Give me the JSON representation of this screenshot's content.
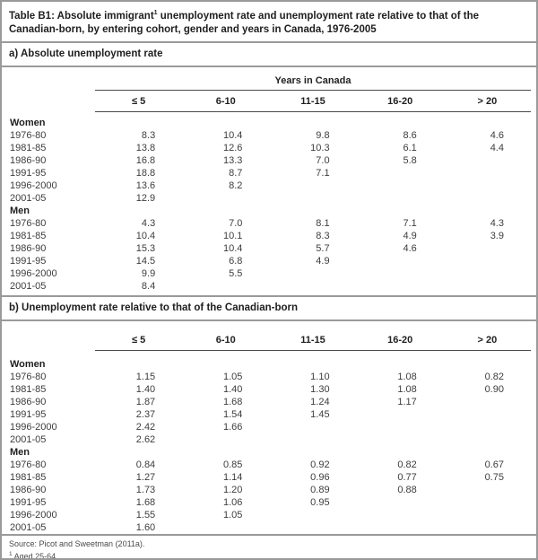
{
  "title": {
    "pre": "Table B1: Absolute immigrant",
    "sup": "1",
    "post": " unemployment rate and unemployment rate relative to that of the Canadian-born, by entering cohort, gender and years in Canada, 1976-2005"
  },
  "colors": {
    "border_gray": "#9a9a9a",
    "header_rule": "#4a4a4a",
    "text": "#3d3d3d",
    "bold_text": "#1f1f1f",
    "background": "#ffffff"
  },
  "sections": [
    {
      "heading": "a) Absolute unemployment rate",
      "years_header": "Years in Canada",
      "columns": [
        "≤ 5",
        "6-10",
        "11-15",
        "16-20",
        "> 20"
      ],
      "rows": [
        {
          "label": "Women",
          "group": true,
          "values": [
            "",
            "",
            "",
            "",
            ""
          ]
        },
        {
          "label": "1976-80",
          "values": [
            "8.3",
            "10.4",
            "9.8",
            "8.6",
            "4.6"
          ]
        },
        {
          "label": "1981-85",
          "values": [
            "13.8",
            "12.6",
            "10.3",
            "6.1",
            "4.4"
          ]
        },
        {
          "label": "1986-90",
          "values": [
            "16.8",
            "13.3",
            "7.0",
            "5.8",
            ""
          ]
        },
        {
          "label": "1991-95",
          "values": [
            "18.8",
            "8.7",
            "7.1",
            "",
            ""
          ]
        },
        {
          "label": "1996-2000",
          "values": [
            "13.6",
            "8.2",
            "",
            "",
            ""
          ]
        },
        {
          "label": "2001-05",
          "values": [
            "12.9",
            "",
            "",
            "",
            ""
          ]
        },
        {
          "label": "Men",
          "group": true,
          "values": [
            "",
            "",
            "",
            "",
            ""
          ]
        },
        {
          "label": "1976-80",
          "values": [
            "4.3",
            "7.0",
            "8.1",
            "7.1",
            "4.3"
          ]
        },
        {
          "label": "1981-85",
          "values": [
            "10.4",
            "10.1",
            "8.3",
            "4.9",
            "3.9"
          ]
        },
        {
          "label": "1986-90",
          "values": [
            "15.3",
            "10.4",
            "5.7",
            "4.6",
            ""
          ]
        },
        {
          "label": "1991-95",
          "values": [
            "14.5",
            "6.8",
            "4.9",
            "",
            ""
          ]
        },
        {
          "label": "1996-2000",
          "values": [
            "9.9",
            "5.5",
            "",
            "",
            ""
          ]
        },
        {
          "label": "2001-05",
          "values": [
            "8.4",
            "",
            "",
            "",
            ""
          ]
        }
      ]
    },
    {
      "heading": "b) Unemployment rate relative to that of the Canadian-born",
      "columns": [
        "≤ 5",
        "6-10",
        "11-15",
        "16-20",
        "> 20"
      ],
      "rows": [
        {
          "label": "Women",
          "group": true,
          "values": [
            "",
            "",
            "",
            "",
            ""
          ]
        },
        {
          "label": "1976-80",
          "values": [
            "1.15",
            "1.05",
            "1.10",
            "1.08",
            "0.82"
          ]
        },
        {
          "label": "1981-85",
          "values": [
            "1.40",
            "1.40",
            "1.30",
            "1.08",
            "0.90"
          ]
        },
        {
          "label": "1986-90",
          "values": [
            "1.87",
            "1.68",
            "1.24",
            "1.17",
            ""
          ]
        },
        {
          "label": "1991-95",
          "values": [
            "2.37",
            "1.54",
            "1.45",
            "",
            ""
          ]
        },
        {
          "label": "1996-2000",
          "values": [
            "2.42",
            "1.66",
            "",
            "",
            ""
          ]
        },
        {
          "label": "2001-05",
          "values": [
            "2.62",
            "",
            "",
            "",
            ""
          ]
        },
        {
          "label": "Men",
          "group": true,
          "values": [
            "",
            "",
            "",
            "",
            ""
          ]
        },
        {
          "label": "1976-80",
          "values": [
            "0.84",
            "0.85",
            "0.92",
            "0.82",
            "0.67"
          ]
        },
        {
          "label": "1981-85",
          "values": [
            "1.27",
            "1.14",
            "0.96",
            "0.77",
            "0.75"
          ]
        },
        {
          "label": "1986-90",
          "values": [
            "1.73",
            "1.20",
            "0.89",
            "0.88",
            ""
          ]
        },
        {
          "label": "1991-95",
          "values": [
            "1.68",
            "1.06",
            "0.95",
            "",
            ""
          ]
        },
        {
          "label": "1996-2000",
          "values": [
            "1.55",
            "1.05",
            "",
            "",
            ""
          ]
        },
        {
          "label": "2001-05",
          "values": [
            "1.60",
            "",
            "",
            "",
            ""
          ]
        }
      ]
    }
  ],
  "footer": {
    "source": "Source: Picot and Sweetman (2011a).",
    "footnote_sup": "1",
    "footnote_text": " Aged 25-64."
  }
}
